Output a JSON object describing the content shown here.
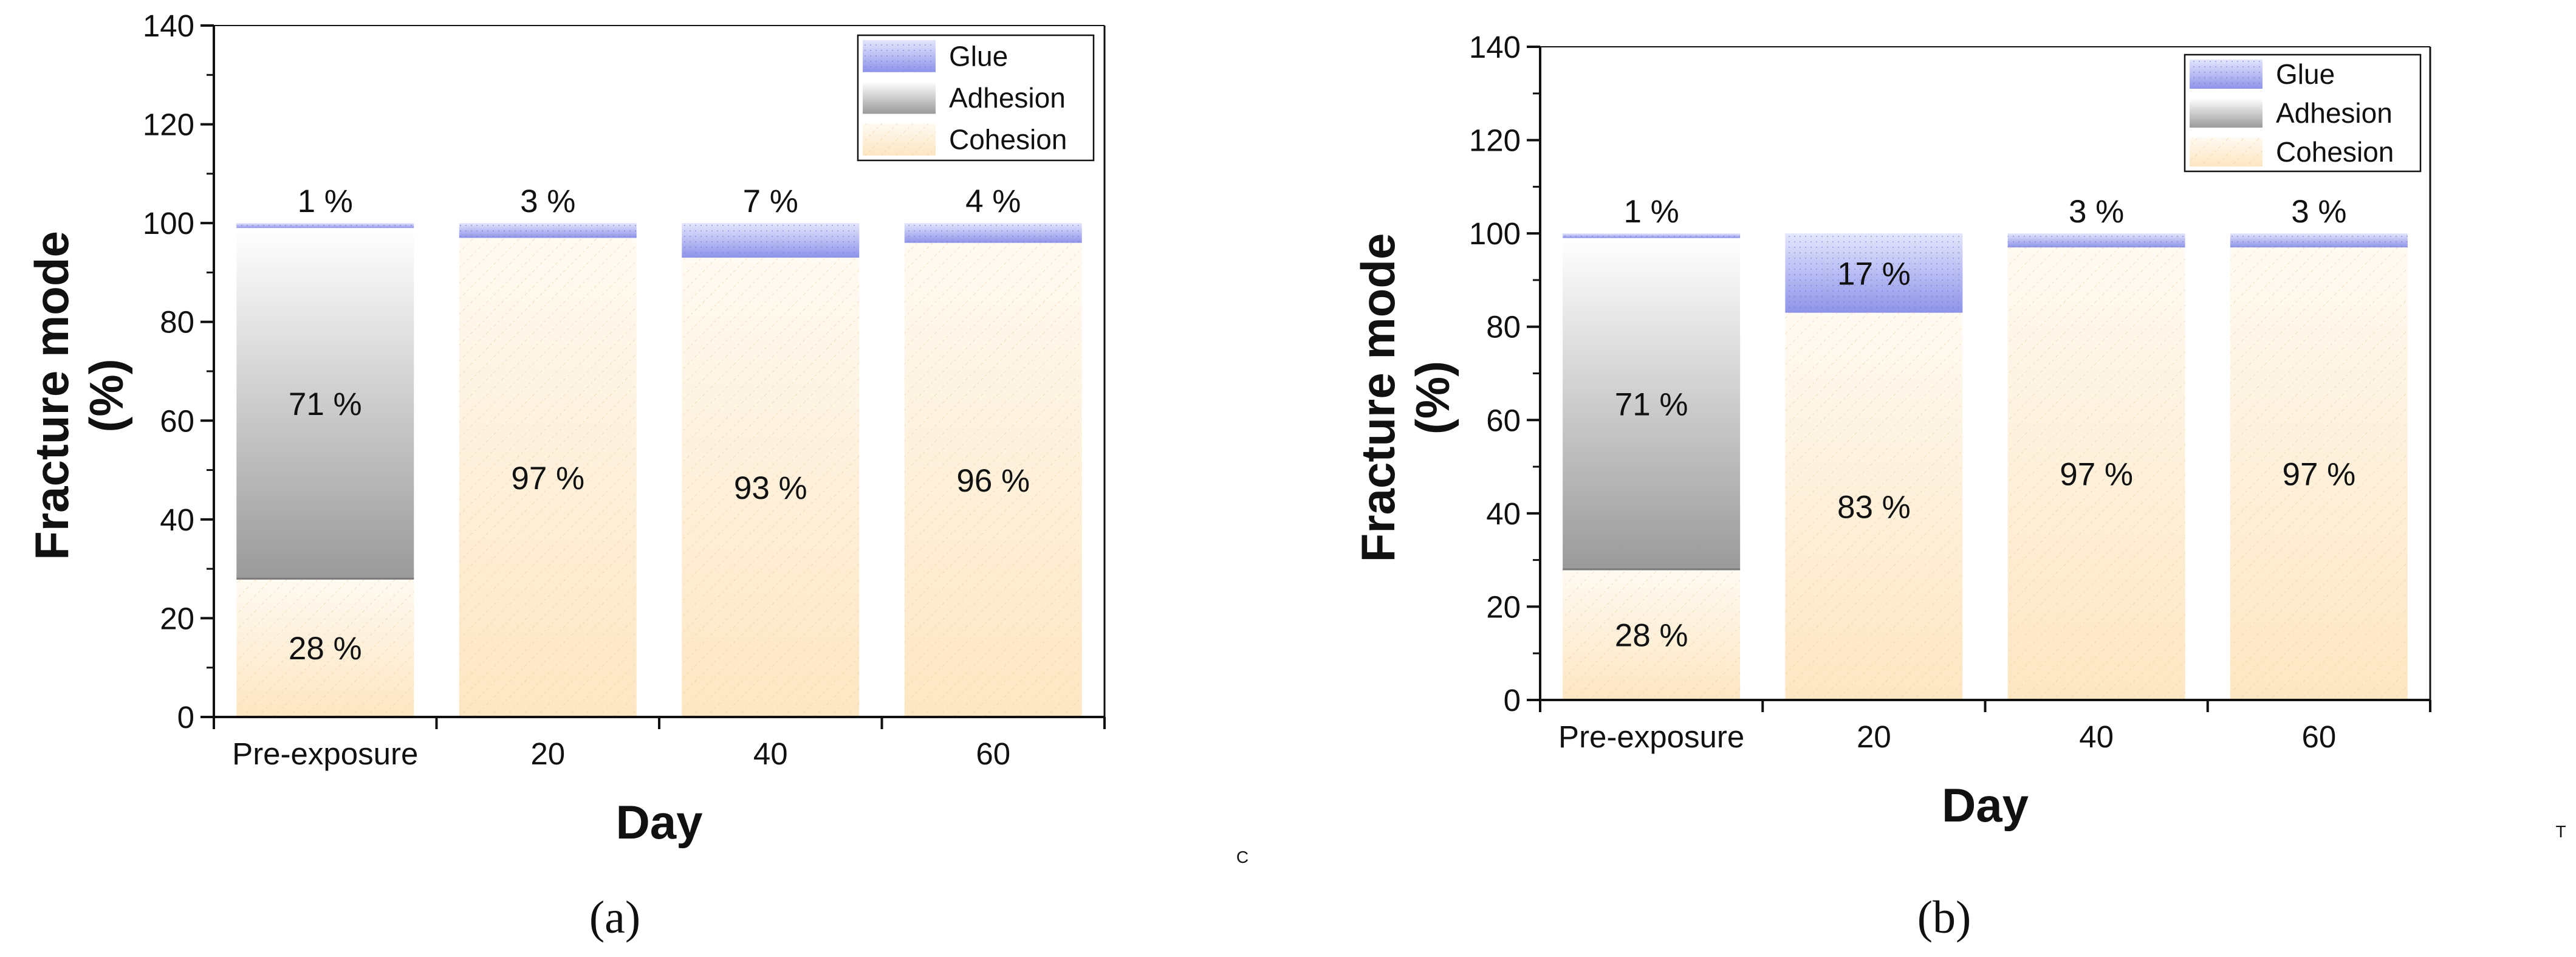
{
  "chart_data": [
    {
      "type": "bar",
      "stacked": true,
      "panel_label": "(a)",
      "xlabel": "Day",
      "ylabel": "Fracture mode (%)",
      "ylim": [
        0,
        140
      ],
      "yticks": [
        0,
        20,
        40,
        60,
        80,
        100,
        120,
        140
      ],
      "categories": [
        "Pre-exposure",
        "20",
        "40",
        "60"
      ],
      "series": [
        {
          "name": "Cohesion",
          "values": [
            28,
            97,
            93,
            96
          ],
          "labels": [
            "28 %",
            "97 %",
            "93 %",
            "96 %"
          ],
          "color": "#fde9c8"
        },
        {
          "name": "Adhesion",
          "values": [
            71,
            0,
            0,
            0
          ],
          "labels": [
            "71 %",
            "",
            "",
            ""
          ],
          "color": "#9e9e9e"
        },
        {
          "name": "Glue",
          "values": [
            1,
            3,
            7,
            4
          ],
          "labels": [
            "1 %",
            "3 %",
            "7 %",
            "4 %"
          ],
          "color": "#8f95e8"
        }
      ],
      "legend_order": [
        "Glue",
        "Adhesion",
        "Cohesion"
      ],
      "legend_position": "top-right",
      "stray_text": "C"
    },
    {
      "type": "bar",
      "stacked": true,
      "panel_label": "(b)",
      "xlabel": "Day",
      "ylabel": "Fracture mode (%)",
      "ylim": [
        0,
        140
      ],
      "yticks": [
        0,
        20,
        40,
        60,
        80,
        100,
        120,
        140
      ],
      "categories": [
        "Pre-exposure",
        "20",
        "40",
        "60"
      ],
      "series": [
        {
          "name": "Cohesion",
          "values": [
            28,
            83,
            97,
            97
          ],
          "labels": [
            "28 %",
            "83 %",
            "97 %",
            "97 %"
          ],
          "color": "#fde9c8"
        },
        {
          "name": "Adhesion",
          "values": [
            71,
            0,
            0,
            0
          ],
          "labels": [
            "71 %",
            "",
            "",
            ""
          ],
          "color": "#9e9e9e"
        },
        {
          "name": "Glue",
          "values": [
            1,
            17,
            3,
            3
          ],
          "labels": [
            "1 %",
            "17 %",
            "3 %",
            "3 %"
          ],
          "color": "#8f95e8"
        }
      ],
      "legend_order": [
        "Glue",
        "Adhesion",
        "Cohesion"
      ],
      "legend_position": "top-right",
      "stray_text": "T"
    }
  ]
}
